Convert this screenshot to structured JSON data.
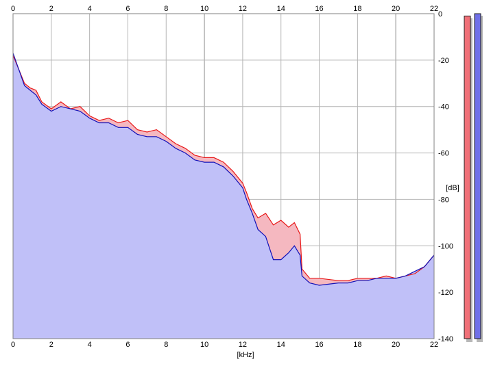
{
  "chart_data": {
    "type": "area",
    "title": "",
    "xlabel": "[kHz]",
    "ylabel": "[dB]",
    "xlim": [
      0,
      22
    ],
    "ylim": [
      -140,
      0
    ],
    "x_ticks": [
      "0",
      "2",
      "4",
      "6",
      "8",
      "10",
      "12",
      "14",
      "16",
      "18",
      "20",
      "22"
    ],
    "y_ticks": [
      "0",
      "-20",
      "-40",
      "-60",
      "-80",
      "-100",
      "-120",
      "-140"
    ],
    "grid": true,
    "series": [
      {
        "channel": "left",
        "color": "#e81818",
        "fill": "#f5b8c0",
        "values": [
          [
            0,
            -18
          ],
          [
            0.3,
            -24
          ],
          [
            0.6,
            -30
          ],
          [
            0.9,
            -32
          ],
          [
            1.2,
            -33
          ],
          [
            1.5,
            -38
          ],
          [
            2,
            -41
          ],
          [
            2.5,
            -38
          ],
          [
            3,
            -41
          ],
          [
            3.5,
            -40
          ],
          [
            4,
            -44
          ],
          [
            4.5,
            -46
          ],
          [
            5,
            -45
          ],
          [
            5.5,
            -47
          ],
          [
            6,
            -46
          ],
          [
            6.5,
            -50
          ],
          [
            7,
            -51
          ],
          [
            7.5,
            -50
          ],
          [
            8,
            -53
          ],
          [
            8.5,
            -56
          ],
          [
            9,
            -58
          ],
          [
            9.5,
            -61
          ],
          [
            10,
            -62
          ],
          [
            10.5,
            -62
          ],
          [
            11,
            -64
          ],
          [
            11.5,
            -68
          ],
          [
            12,
            -73
          ],
          [
            12.2,
            -77
          ],
          [
            12.5,
            -84
          ],
          [
            12.8,
            -88
          ],
          [
            13.2,
            -86
          ],
          [
            13.6,
            -91
          ],
          [
            14,
            -89
          ],
          [
            14.4,
            -92
          ],
          [
            14.7,
            -90
          ],
          [
            15,
            -95
          ],
          [
            15.1,
            -110
          ],
          [
            15.5,
            -114
          ],
          [
            16,
            -114
          ],
          [
            17,
            -115
          ],
          [
            17.5,
            -115
          ],
          [
            18,
            -114
          ],
          [
            18.5,
            -114
          ],
          [
            19,
            -114
          ],
          [
            19.5,
            -113
          ],
          [
            20,
            -114
          ],
          [
            20.5,
            -113
          ],
          [
            21,
            -112
          ],
          [
            21.5,
            -109
          ],
          [
            22,
            -104
          ]
        ]
      },
      {
        "channel": "right",
        "color": "#1010b8",
        "fill": "#c0c0f8",
        "values": [
          [
            0,
            -17
          ],
          [
            0.3,
            -24
          ],
          [
            0.6,
            -31
          ],
          [
            0.9,
            -33
          ],
          [
            1.2,
            -35
          ],
          [
            1.5,
            -39
          ],
          [
            2,
            -42
          ],
          [
            2.5,
            -40
          ],
          [
            3,
            -41
          ],
          [
            3.5,
            -42
          ],
          [
            4,
            -45
          ],
          [
            4.5,
            -47
          ],
          [
            5,
            -47
          ],
          [
            5.5,
            -49
          ],
          [
            6,
            -49
          ],
          [
            6.5,
            -52
          ],
          [
            7,
            -53
          ],
          [
            7.5,
            -53
          ],
          [
            8,
            -55
          ],
          [
            8.5,
            -58
          ],
          [
            9,
            -60
          ],
          [
            9.5,
            -63
          ],
          [
            10,
            -64
          ],
          [
            10.5,
            -64
          ],
          [
            11,
            -66
          ],
          [
            11.5,
            -70
          ],
          [
            12,
            -75
          ],
          [
            12.2,
            -80
          ],
          [
            12.5,
            -86
          ],
          [
            12.8,
            -93
          ],
          [
            13.2,
            -96
          ],
          [
            13.6,
            -106
          ],
          [
            14,
            -106
          ],
          [
            14.4,
            -103
          ],
          [
            14.7,
            -100
          ],
          [
            15,
            -104
          ],
          [
            15.1,
            -113
          ],
          [
            15.5,
            -116
          ],
          [
            16,
            -117
          ],
          [
            17,
            -116
          ],
          [
            17.5,
            -116
          ],
          [
            18,
            -115
          ],
          [
            18.5,
            -115
          ],
          [
            19,
            -114
          ],
          [
            19.5,
            -114
          ],
          [
            20,
            -114
          ],
          [
            20.5,
            -113
          ],
          [
            21,
            -111
          ],
          [
            21.5,
            -109
          ],
          [
            22,
            -104
          ]
        ]
      }
    ],
    "level_meters": [
      {
        "channel": "left",
        "color": "#f07078",
        "level_db": -1
      },
      {
        "channel": "right",
        "color": "#7070e8",
        "level_db": 0
      }
    ]
  }
}
